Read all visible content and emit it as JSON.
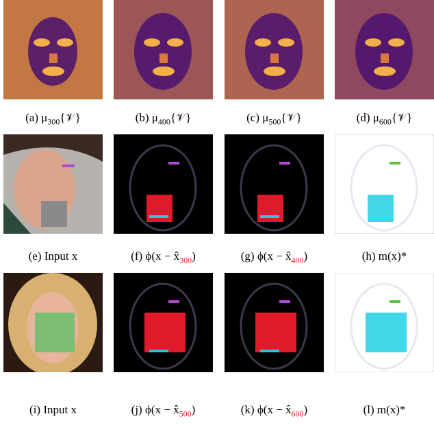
{
  "panels": [
    {
      "label": "(a)",
      "main": "μ",
      "sub": "300",
      "tail": "{𝒱}"
    },
    {
      "label": "(b)",
      "main": "μ",
      "sub": "400",
      "tail": "{𝒱}"
    },
    {
      "label": "(c)",
      "main": "μ",
      "sub": "500",
      "tail": "{𝒱}"
    },
    {
      "label": "(d)",
      "main": "μ",
      "sub": "600",
      "tail": "{𝒱}"
    },
    {
      "label": "(e)",
      "main": "Input x"
    },
    {
      "label": "(f)",
      "main": "ϕ(x − x̂",
      "sub": "300",
      "tail": ")"
    },
    {
      "label": "(g)",
      "main": "ϕ(x − x̂",
      "sub": "400",
      "tail": ")"
    },
    {
      "label": "(h)",
      "main": "m(x)*"
    },
    {
      "label": "(i)",
      "main": "Input x"
    },
    {
      "label": "(j)",
      "main": "ϕ(x − x̂",
      "sub": "500",
      "tail": ")"
    },
    {
      "label": "(k)",
      "main": "ϕ(x − x̂",
      "sub": "600",
      "tail": ")"
    },
    {
      "label": "(l)",
      "main": "m(x)*"
    }
  ]
}
